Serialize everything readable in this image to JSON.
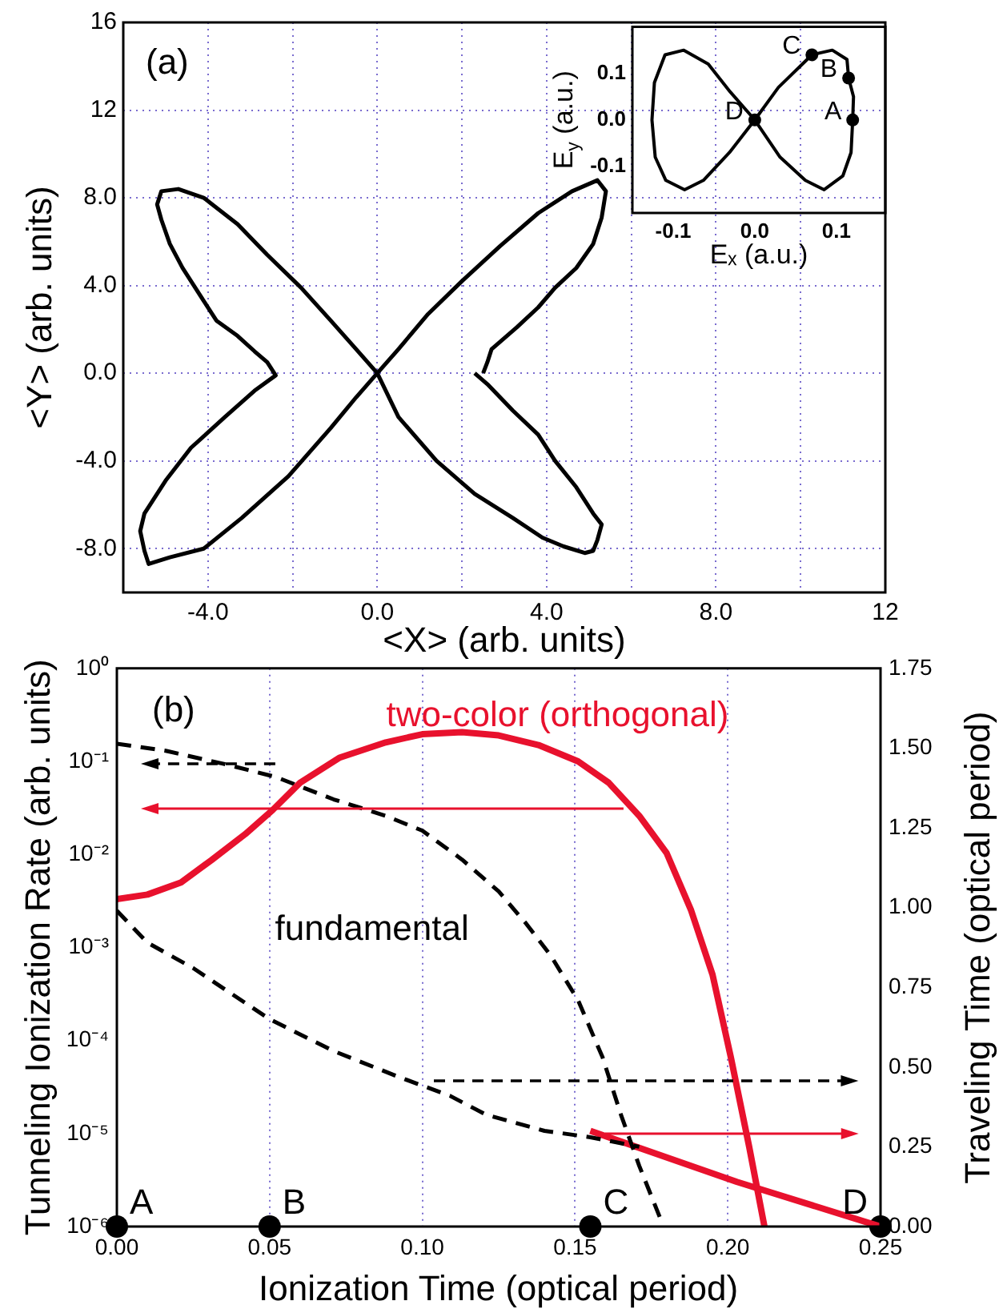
{
  "chart_data": [
    {
      "type": "line",
      "xlabel": "<X> (arb. units)",
      "ylabel": "<Y> (arb. units)",
      "annotations": [
        "(a)"
      ],
      "xlim": [
        -6,
        12
      ],
      "ylim": [
        -10,
        16
      ],
      "xticks": [
        {
          "value": -4,
          "label": "-4.0"
        },
        {
          "value": -2,
          "label": null
        },
        {
          "value": 0,
          "label": "0.0"
        },
        {
          "value": 2,
          "label": null
        },
        {
          "value": 4,
          "label": "4.0"
        },
        {
          "value": 6,
          "label": null
        },
        {
          "value": 8,
          "label": "8.0"
        },
        {
          "value": 10,
          "label": null
        },
        12
      ],
      "yticks": [
        {
          "value": -8,
          "label": "-8.0"
        },
        {
          "value": -4,
          "label": "-4.0"
        },
        {
          "value": 0,
          "label": "0.0"
        },
        {
          "value": 4,
          "label": "4.0"
        },
        {
          "value": 8,
          "label": "8.0"
        },
        12,
        16
      ],
      "grid": true,
      "series": [
        {
          "color": "#000000",
          "x": [
            2.3,
            2.6,
            3.2,
            3.8,
            4.2,
            4.7,
            5.1,
            5.3,
            5.2,
            5.1,
            4.9,
            4.4,
            3.9,
            3.2,
            2.3,
            1.4,
            0.5,
            0,
            -0.5,
            -1.1,
            -1.8,
            -2.6,
            -3.3,
            -4.1,
            -4.7,
            -5.1,
            -5.2,
            -5.1,
            -4.9,
            -4.6,
            -4.4,
            -4.1,
            -3.8,
            -3.3,
            -2.9,
            -2.6,
            -2.4,
            -2.9,
            -3.6,
            -4.4,
            -5.0,
            -5.5,
            -5.6,
            -5.5,
            -5.4,
            -4.9,
            -4.1,
            -3.2,
            -2.1,
            -1.1,
            -0.5,
            0,
            0.5,
            1.2,
            2.0,
            2.9,
            3.8,
            4.6,
            5.2,
            5.4,
            5.3,
            5.1,
            4.7,
            4.2,
            3.8,
            3.3,
            3.0,
            2.7,
            2.6,
            2.5
          ],
          "values": [
            0,
            -0.5,
            -1.7,
            -2.8,
            -4.0,
            -5.2,
            -6.4,
            -6.9,
            -7.6,
            -8.1,
            -8.2,
            -7.9,
            -7.5,
            -6.6,
            -5.5,
            -4.0,
            -2.0,
            0,
            1.1,
            2.4,
            3.9,
            5.4,
            6.8,
            8.0,
            8.4,
            8.3,
            7.7,
            7.0,
            5.9,
            4.8,
            4.2,
            3.3,
            2.4,
            1.7,
            1.0,
            0.5,
            -0.1,
            -0.8,
            -2.0,
            -3.4,
            -4.9,
            -6.4,
            -7.2,
            -8.1,
            -8.7,
            -8.4,
            -8.0,
            -6.6,
            -4.7,
            -2.5,
            -1.1,
            0,
            1.1,
            2.7,
            4.2,
            5.8,
            7.3,
            8.3,
            8.8,
            8.3,
            7.1,
            5.9,
            4.8,
            3.9,
            3.0,
            2.1,
            1.6,
            1.1,
            0.5,
            0
          ]
        }
      ]
    },
    {
      "type": "line",
      "xlabel": "Eₓ (a.u.)",
      "ylabel": "E$_{y}$ (a.u.)",
      "xlim": [
        -0.15,
        0.16
      ],
      "ylim": [
        -0.2,
        0.2
      ],
      "xticks": [
        -0.1,
        {
          "value": 0,
          "label": "0.0"
        },
        0.1
      ],
      "yticks": [
        -0.1,
        {
          "value": 0,
          "label": "0.0"
        },
        0.1
      ],
      "annotations": [
        {
          "text": "A",
          "x": 0.12,
          "y": 0
        },
        {
          "text": "B",
          "x": 0.115,
          "y": 0.09
        },
        {
          "text": "C",
          "x": 0.07,
          "y": 0.14
        },
        {
          "text": "D",
          "x": 0,
          "y": 0
        }
      ],
      "series": [
        {
          "color": "#000000",
          "x": [
            0.12,
            0.118,
            0.108,
            0.085,
            0.062,
            0.031,
            0,
            -0.03,
            -0.057,
            -0.087,
            -0.11,
            -0.123,
            -0.126,
            -0.122,
            -0.109,
            -0.086,
            -0.063,
            -0.031,
            0
          ],
          "values": [
            0,
            -0.07,
            -0.12,
            -0.15,
            -0.13,
            -0.08,
            0,
            0.06,
            0.12,
            0.15,
            0.14,
            0.08,
            0,
            -0.08,
            -0.13,
            -0.15,
            -0.13,
            -0.07,
            0
          ]
        },
        {
          "color": "#000000",
          "x": [
            0,
            0.029,
            0.07,
            0.095,
            0.113,
            0.115,
            0.121,
            0.12
          ],
          "values": [
            0,
            0.07,
            0.14,
            0.15,
            0.13,
            0.09,
            0.05,
            0
          ]
        },
        {
          "type": "scatter",
          "color": "#000000",
          "marker": "circle",
          "x": [
            0.12,
            0.115,
            0.07,
            0
          ],
          "values": [
            0,
            0.09,
            0.14,
            0
          ]
        }
      ]
    },
    {
      "type": "line",
      "xlabel": "Ionization Time (optical period)",
      "ylabel": "Tunneling Ionization Rate (arb. units)",
      "y2label": "Traveling Time (optical period)",
      "annotations": [
        "(b)",
        {
          "text": "A",
          "x": 0,
          "y": 1e-06
        },
        {
          "text": "B",
          "x": 0.05,
          "y": 1e-06
        },
        {
          "text": "C",
          "x": 0.155,
          "y": 1e-06
        },
        {
          "text": "D",
          "x": 0.25,
          "y": 1e-06
        }
      ],
      "xlim": [
        0,
        0.25
      ],
      "xticks": [
        {
          "value": 0,
          "label": "0.00"
        },
        0.05,
        {
          "value": 0.1,
          "label": "0.10"
        },
        0.15,
        {
          "value": 0.2,
          "label": "0.20"
        },
        0.25
      ],
      "ylim": [
        1e-06,
        1
      ],
      "yticks": [
        {
          "value": 1,
          "label": "10⁰"
        },
        {
          "value": 0.1,
          "label": "10⁻¹"
        },
        {
          "value": 0.01,
          "label": "10⁻²"
        },
        {
          "value": 0.001,
          "label": "10⁻³"
        },
        {
          "value": 0.0001,
          "label": "10⁻⁴"
        },
        {
          "value": 1e-05,
          "label": "10⁻⁵"
        },
        {
          "value": 1e-06,
          "label": "10⁻⁶"
        }
      ],
      "y2lim": [
        0,
        1.75
      ],
      "y2ticks": [
        {
          "value": 0,
          "label": "0.00"
        },
        0.25,
        {
          "value": 0.5,
          "label": "0.50"
        },
        0.75,
        {
          "value": 1,
          "label": "1.00"
        },
        1.25,
        {
          "value": 1.5,
          "label": "1.50"
        },
        1.75
      ],
      "log": "y",
      "grid": "x",
      "series": [
        {
          "name": "two-color (orthogonal)",
          "color": "#e8112d",
          "x": [
            0,
            0.01,
            0.021,
            0.031,
            0.042,
            0.051,
            0.06,
            0.073,
            0.088,
            0.1,
            0.113,
            0.125,
            0.138,
            0.151,
            0.161,
            0.171,
            0.18,
            0.188,
            0.195,
            0.201,
            0.207,
            0.212
          ],
          "values": [
            0.0033,
            0.0037,
            0.005,
            0.0087,
            0.0165,
            0.03,
            0.059,
            0.11,
            0.16,
            0.196,
            0.206,
            0.19,
            0.15,
            0.1,
            0.059,
            0.026,
            0.0103,
            0.0025,
            0.00051,
            6.6e-05,
            7.2e-06,
            1e-06
          ]
        },
        {
          "name": "fundamental",
          "color": "#000000",
          "line_style": "dashed",
          "x": [
            0,
            0.016,
            0.035,
            0.052,
            0.071,
            0.088,
            0.1,
            0.113,
            0.125,
            0.134,
            0.142,
            0.151,
            0.159,
            0.165,
            0.171,
            0.178
          ],
          "values": [
            0.155,
            0.13,
            0.094,
            0.068,
            0.039,
            0.026,
            0.018,
            0.0088,
            0.004,
            0.0018,
            0.00082,
            0.00027,
            6.6e-05,
            1.6e-05,
            4.5e-06,
            1.2e-06
          ]
        },
        {
          "color": "#000000",
          "line_style": "dashed",
          "axis": "y2",
          "x": [
            0,
            0.01,
            0.025,
            0.05,
            0.071,
            0.092,
            0.109,
            0.121,
            0.14,
            0.155,
            0.171
          ],
          "values": [
            0.99,
            0.89,
            0.81,
            0.65,
            0.55,
            0.47,
            0.41,
            0.35,
            0.3,
            0.28,
            0.25
          ]
        },
        {
          "color": "#e8112d",
          "axis": "y2",
          "x": [
            0.155,
            0.203,
            0.25
          ],
          "values": [
            0.3,
            0.14,
            0
          ]
        },
        {
          "type": "scatter",
          "color": "#000000",
          "marker": "circle",
          "x": [
            0,
            0.05,
            0.155,
            0.25
          ],
          "values": [
            1e-06,
            1e-06,
            1e-06,
            1e-06
          ]
        }
      ]
    }
  ]
}
